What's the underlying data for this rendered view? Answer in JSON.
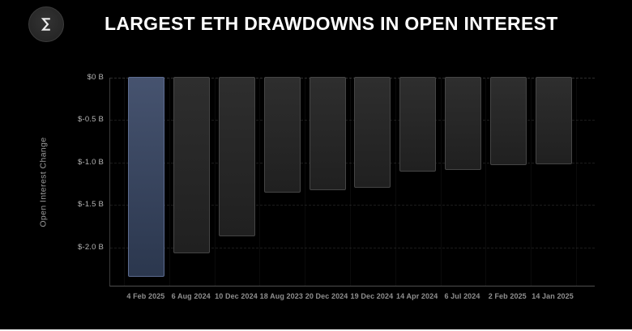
{
  "header": {
    "title": "LARGEST ETH DRAWDOWNS IN OPEN INTEREST",
    "logo_icon": "sigma-logo"
  },
  "chart_data": {
    "type": "bar",
    "title": "LARGEST ETH DRAWDOWNS IN OPEN INTEREST",
    "xlabel": "",
    "ylabel": "Open Interest Change",
    "unit": "billions USD",
    "categories": [
      "4 Feb 2025",
      "6 Aug 2024",
      "10 Dec 2024",
      "18 Aug 2023",
      "20 Dec 2024",
      "19 Dec 2024",
      "14 Apr 2024",
      "6 Jul 2024",
      "2 Feb 2025",
      "14 Jan 2025"
    ],
    "values": [
      -2.35,
      -2.08,
      -1.88,
      -1.36,
      -1.33,
      -1.31,
      -1.12,
      -1.1,
      -1.04,
      -1.03
    ],
    "highlight_index": 0,
    "ylim": [
      -2.45,
      0
    ],
    "yticks": [
      {
        "value": 0,
        "label": "$0 B"
      },
      {
        "value": -0.5,
        "label": "$-0.5 B"
      },
      {
        "value": -1.0,
        "label": "$-1.0 B"
      },
      {
        "value": -1.5,
        "label": "$-1.5 B"
      },
      {
        "value": -2.0,
        "label": "$-2.0 B"
      }
    ],
    "grid": true,
    "legend_position": "none",
    "colors": {
      "background": "#000000",
      "bar_fill": "#202020",
      "bar_fill_top": "#2e2e2e",
      "bar_border": "#454545",
      "highlight_fill": "#2b374e",
      "highlight_fill_top": "#46536f",
      "highlight_border": "#5d6c91",
      "grid_line": "#2a2a2a",
      "axis_line": "#4f4f4f",
      "y_tick_label": "#b5b5b5",
      "x_tick_label": "#8f8f8f",
      "title": "#ffffff"
    }
  }
}
